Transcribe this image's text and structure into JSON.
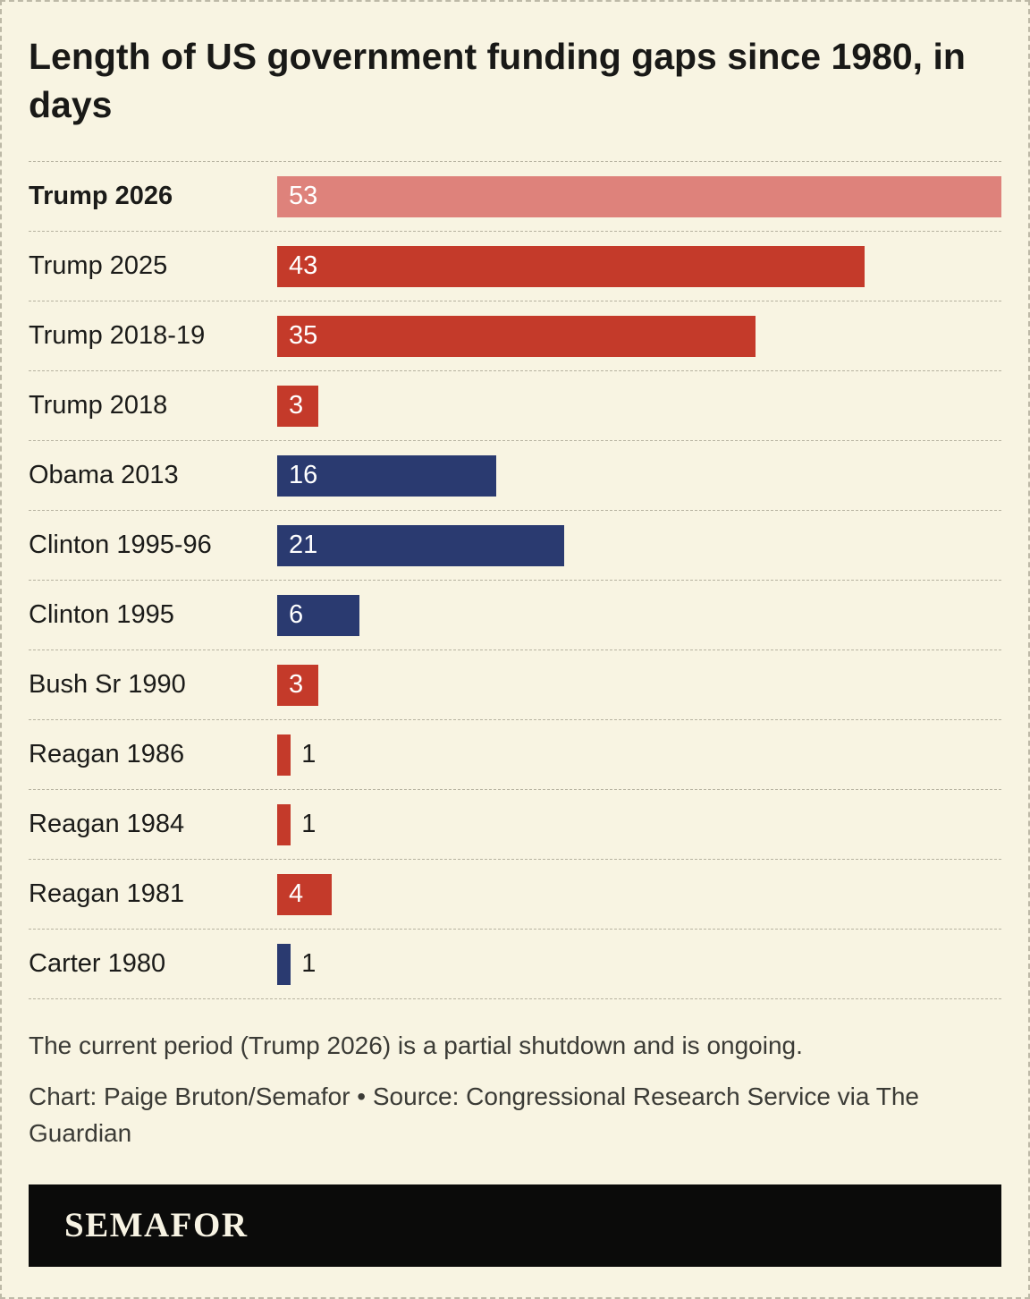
{
  "title": "Length of US government funding gaps since 1980, in days",
  "chart_data": {
    "type": "bar",
    "orientation": "horizontal",
    "title": "Length of US government funding gaps since 1980, in days",
    "xlabel": "days",
    "xlim": [
      0,
      53
    ],
    "categories": [
      "Trump 2026",
      "Trump 2025",
      "Trump 2018-19",
      "Trump 2018",
      "Obama 2013",
      "Clinton 1995-96",
      "Clinton 1995",
      "Bush Sr 1990",
      "Reagan 1986",
      "Reagan 1984",
      "Reagan 1981",
      "Carter 1980"
    ],
    "values": [
      53,
      43,
      35,
      3,
      16,
      21,
      6,
      3,
      1,
      1,
      4,
      1
    ],
    "bar_colors": [
      "#de827b",
      "#c43a2a",
      "#c43a2a",
      "#c43a2a",
      "#2a3a70",
      "#2a3a70",
      "#2a3a70",
      "#c43a2a",
      "#c43a2a",
      "#c43a2a",
      "#c43a2a",
      "#2a3a70"
    ],
    "highlight_category": "Trump 2026",
    "value_label_inside_min": 3,
    "legend": "none",
    "grid": "dashed-row-separators",
    "palette": {
      "republican_red": "#c43a2a",
      "democrat_navy": "#2a3a70",
      "ongoing_salmon": "#de827b",
      "background_cream": "#f8f4e2"
    }
  },
  "notes": {
    "caption": "The current period (Trump 2026) is a partial shutdown and is ongoing.",
    "credit": "Chart: Paige Bruton/Semafor • Source: Congressional Research Service via The Guardian"
  },
  "footer": {
    "logo_text": "SEMAFOR"
  }
}
